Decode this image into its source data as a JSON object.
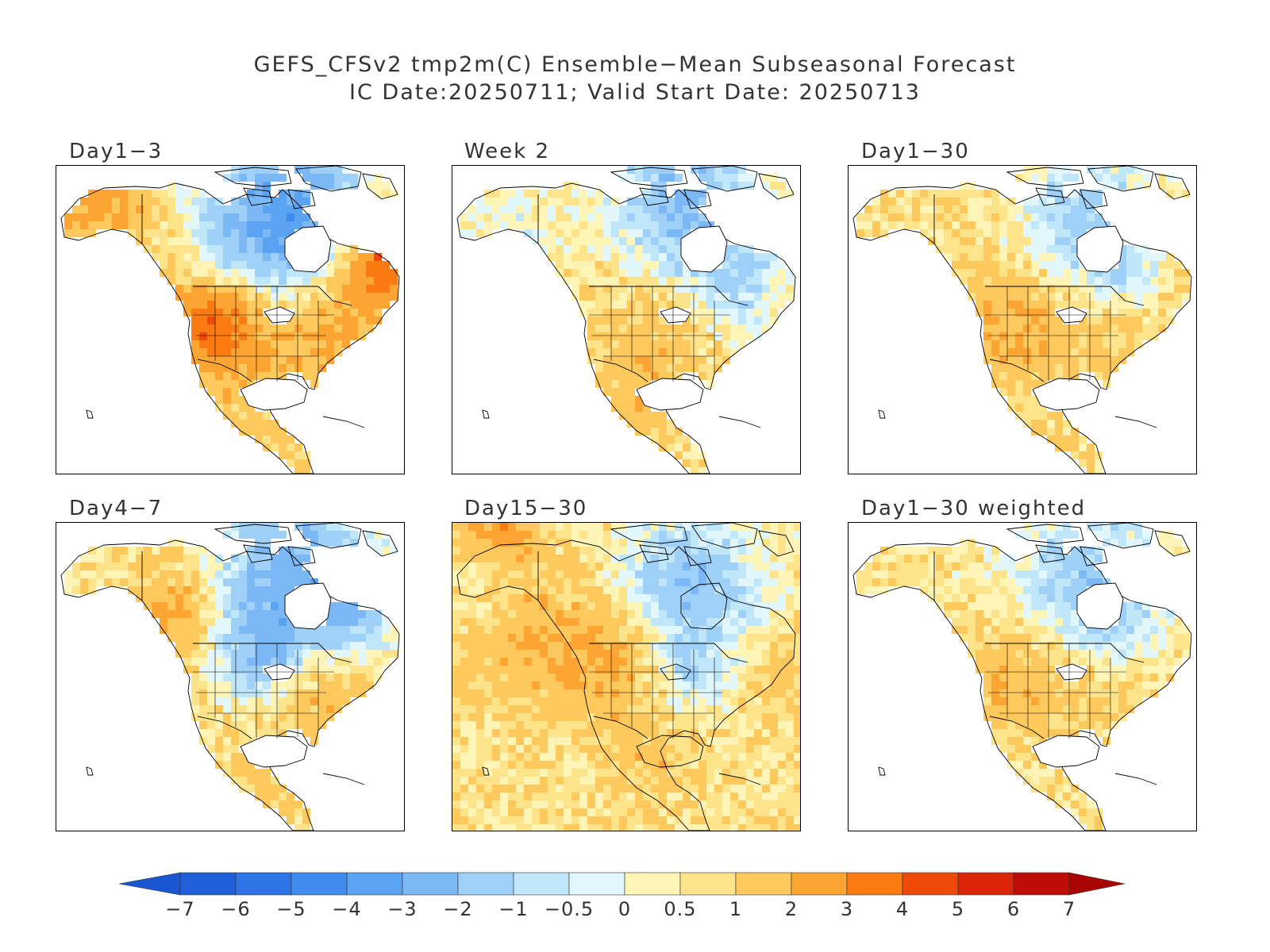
{
  "title": {
    "line1": "GEFS_CFSv2 tmp2m(C) Ensemble−Mean Subseasonal Forecast",
    "line2": "IC Date:20250711; Valid Start Date: 20250713"
  },
  "panels": [
    {
      "label": "Day1−3",
      "style": "warm_east_cold_north",
      "land_bias": 1.3,
      "ocean": "none"
    },
    {
      "label": "Week 2",
      "style": "mild_cool_north",
      "land_bias": 0.6,
      "ocean": "none"
    },
    {
      "label": "Day1−30",
      "style": "mild_warm",
      "land_bias": 0.8,
      "ocean": "none"
    },
    {
      "label": "Day4−7",
      "style": "cold_central",
      "land_bias": 0.7,
      "ocean": "none"
    },
    {
      "label": "Day15−30",
      "style": "ocean_warm",
      "land_bias": 0.7,
      "ocean": "filled"
    },
    {
      "label": "Day1−30 weighted",
      "style": "mild_warm",
      "land_bias": 0.6,
      "ocean": "none"
    }
  ],
  "colorbar": {
    "levels": [
      "−7",
      "−6",
      "−5",
      "−4",
      "−3",
      "−2",
      "−1",
      "−0.5",
      "0",
      "0.5",
      "1",
      "2",
      "3",
      "4",
      "5",
      "6",
      "7"
    ],
    "colors": [
      "#1f5fd8",
      "#2e74e6",
      "#3f8cee",
      "#5aa2f2",
      "#7cb8f6",
      "#9fd0f7",
      "#bfe6f9",
      "#e2f7fb",
      "#fdf4b6",
      "#fde48a",
      "#fdc85c",
      "#fda532",
      "#fb7a12",
      "#f04a0a",
      "#dc2408",
      "#c00c06"
    ],
    "low_arrow_color": "#1a56cf",
    "high_arrow_color": "#a80404"
  }
}
